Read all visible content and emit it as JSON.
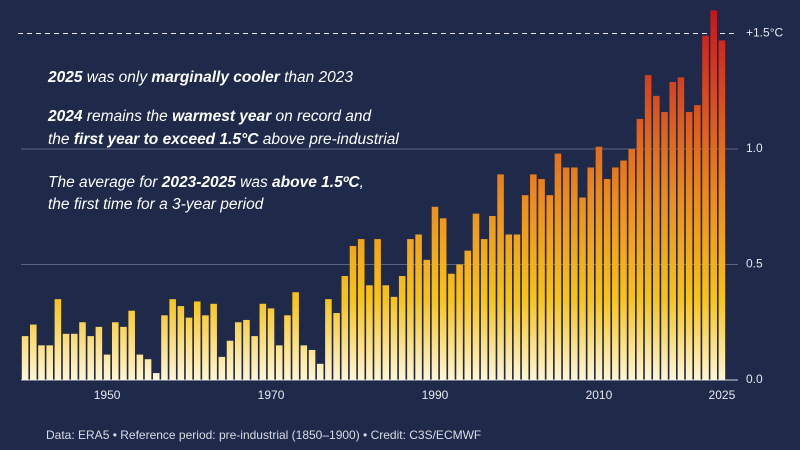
{
  "chart_data": {
    "type": "bar",
    "x": [
      1940,
      1941,
      1942,
      1943,
      1944,
      1945,
      1946,
      1947,
      1948,
      1949,
      1950,
      1951,
      1952,
      1953,
      1954,
      1955,
      1956,
      1957,
      1958,
      1959,
      1960,
      1961,
      1962,
      1963,
      1964,
      1965,
      1966,
      1967,
      1968,
      1969,
      1970,
      1971,
      1972,
      1973,
      1974,
      1975,
      1976,
      1977,
      1978,
      1979,
      1980,
      1981,
      1982,
      1983,
      1984,
      1985,
      1986,
      1987,
      1988,
      1989,
      1990,
      1991,
      1992,
      1993,
      1994,
      1995,
      1996,
      1997,
      1998,
      1999,
      2000,
      2001,
      2002,
      2003,
      2004,
      2005,
      2006,
      2007,
      2008,
      2009,
      2010,
      2011,
      2012,
      2013,
      2014,
      2015,
      2016,
      2017,
      2018,
      2019,
      2020,
      2021,
      2022,
      2023,
      2024,
      2025
    ],
    "values": [
      0.19,
      0.24,
      0.15,
      0.15,
      0.35,
      0.2,
      0.2,
      0.25,
      0.19,
      0.23,
      0.11,
      0.25,
      0.23,
      0.3,
      0.11,
      0.09,
      0.03,
      0.28,
      0.35,
      0.32,
      0.27,
      0.34,
      0.28,
      0.33,
      0.1,
      0.17,
      0.25,
      0.26,
      0.19,
      0.33,
      0.31,
      0.15,
      0.28,
      0.38,
      0.15,
      0.13,
      0.07,
      0.35,
      0.29,
      0.45,
      0.58,
      0.61,
      0.41,
      0.61,
      0.41,
      0.36,
      0.45,
      0.61,
      0.63,
      0.52,
      0.75,
      0.7,
      0.46,
      0.5,
      0.56,
      0.72,
      0.61,
      0.71,
      0.89,
      0.63,
      0.63,
      0.8,
      0.89,
      0.87,
      0.8,
      0.98,
      0.92,
      0.92,
      0.79,
      0.92,
      1.01,
      0.87,
      0.92,
      0.95,
      1.0,
      1.13,
      1.32,
      1.23,
      1.16,
      1.29,
      1.31,
      1.16,
      1.19,
      1.49,
      1.6,
      1.47
    ],
    "xlim": [
      1939.5,
      2025.5
    ],
    "xticks": [
      1950,
      1970,
      1990,
      2010,
      2025
    ],
    "ylim": [
      0,
      1.6
    ],
    "yticks": [
      {
        "value": 0,
        "label": "0.0"
      },
      0.5,
      {
        "value": 1,
        "label": "1.0"
      },
      {
        "value": 1.5,
        "label": "+1.5°C"
      }
    ],
    "color_scale": [
      {
        "value": 0,
        "color": "#fff6d6"
      },
      {
        "value": 0.35,
        "color": "#f8c318"
      },
      {
        "value": 0.8,
        "color": "#ec8a1c"
      },
      {
        "value": 1.6,
        "color": "#c8141e"
      }
    ],
    "annotations": [
      [
        {
          "text": "2025",
          "bold": true
        },
        {
          "text": " was only "
        },
        {
          "text": "marginally cooler",
          "bold": true
        },
        {
          "text": " than 2023"
        }
      ],
      [
        {
          "text": "2024",
          "bold": true
        },
        {
          "text": " remains the "
        },
        {
          "text": "warmest year",
          "bold": true
        },
        {
          "text": " on record and"
        }
      ],
      [
        {
          "text": "the "
        },
        {
          "text": "first year to exceed 1.5°C",
          "bold": true
        },
        {
          "text": " above pre-industrial"
        }
      ],
      [
        {
          "text": "The average for "
        },
        {
          "text": "2023-2025",
          "bold": true
        },
        {
          "text": " was "
        },
        {
          "text": "above 1.5ºC",
          "bold": true
        },
        {
          "text": ","
        }
      ],
      [
        {
          "text": "the first time for a 3-year period"
        }
      ]
    ],
    "footer": "Data: ERA5 • Reference period: pre-industrial (1850–1900) • Credit: C3S/ECMWF"
  }
}
